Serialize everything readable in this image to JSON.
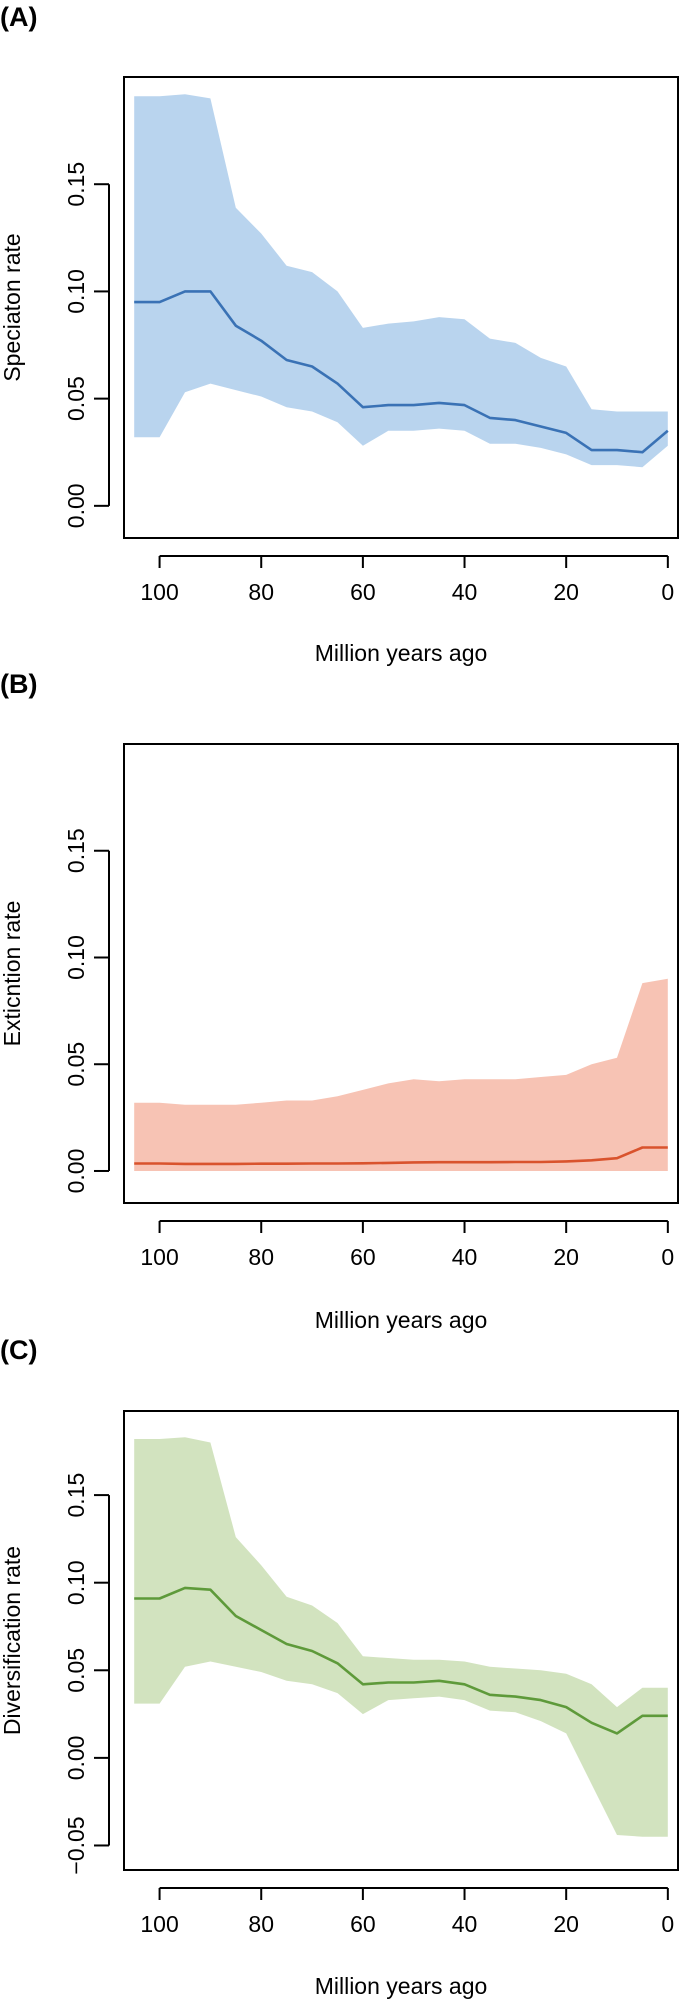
{
  "chart_data": [
    {
      "type": "line",
      "panel_label": "(A)",
      "xlabel": "Million years ago",
      "ylabel": "Speciaton rate",
      "xlim": [
        107,
        -2
      ],
      "ylim": [
        -0.015,
        0.2
      ],
      "xticks": [
        100,
        80,
        60,
        40,
        20,
        0
      ],
      "yticks": [
        0.0,
        0.05,
        0.1,
        0.15
      ],
      "ytick_labels": [
        "0.00",
        "0.05",
        "0.10",
        "0.15"
      ],
      "band_color": "#b9d4ee",
      "line_color": "#3a72b5",
      "x": [
        105,
        100,
        95,
        90,
        85,
        80,
        75,
        70,
        65,
        60,
        55,
        50,
        45,
        40,
        35,
        30,
        25,
        20,
        15,
        10,
        5,
        0
      ],
      "mean": [
        0.095,
        0.095,
        0.1,
        0.1,
        0.084,
        0.077,
        0.068,
        0.065,
        0.057,
        0.046,
        0.047,
        0.047,
        0.048,
        0.047,
        0.041,
        0.04,
        0.037,
        0.034,
        0.026,
        0.026,
        0.025,
        0.035
      ],
      "lower": [
        0.032,
        0.032,
        0.053,
        0.057,
        0.054,
        0.051,
        0.046,
        0.044,
        0.039,
        0.028,
        0.035,
        0.035,
        0.036,
        0.035,
        0.029,
        0.029,
        0.027,
        0.024,
        0.019,
        0.019,
        0.018,
        0.028
      ],
      "upper": [
        0.191,
        0.191,
        0.192,
        0.19,
        0.139,
        0.127,
        0.112,
        0.109,
        0.1,
        0.083,
        0.085,
        0.086,
        0.088,
        0.087,
        0.078,
        0.076,
        0.069,
        0.065,
        0.045,
        0.044,
        0.044,
        0.044
      ]
    },
    {
      "type": "line",
      "panel_label": "(B)",
      "xlabel": "Million years ago",
      "ylabel": "Exticntion rate",
      "xlim": [
        107,
        -2
      ],
      "ylim": [
        -0.015,
        0.2
      ],
      "xticks": [
        100,
        80,
        60,
        40,
        20,
        0
      ],
      "yticks": [
        0.0,
        0.05,
        0.1,
        0.15
      ],
      "ytick_labels": [
        "0.00",
        "0.05",
        "0.10",
        "0.15"
      ],
      "band_color": "#f7c3b4",
      "line_color": "#d9532d",
      "x": [
        105,
        100,
        95,
        90,
        85,
        80,
        75,
        70,
        65,
        60,
        55,
        50,
        45,
        40,
        35,
        30,
        25,
        20,
        15,
        10,
        5,
        0
      ],
      "mean": [
        0.0035,
        0.0035,
        0.0033,
        0.0033,
        0.0033,
        0.0034,
        0.0034,
        0.0035,
        0.0035,
        0.0036,
        0.0038,
        0.004,
        0.0041,
        0.0041,
        0.0041,
        0.0042,
        0.0042,
        0.0045,
        0.005,
        0.006,
        0.011,
        0.011
      ],
      "lower": [
        0.0,
        0.0,
        0.0,
        0.0,
        0.0,
        0.0,
        0.0,
        0.0,
        0.0,
        0.0,
        0.0,
        0.0,
        0.0,
        0.0,
        0.0,
        0.0,
        0.0,
        0.0,
        0.0,
        0.0,
        0.0,
        0.0
      ],
      "upper": [
        0.032,
        0.032,
        0.031,
        0.031,
        0.031,
        0.032,
        0.033,
        0.033,
        0.035,
        0.038,
        0.041,
        0.043,
        0.042,
        0.043,
        0.043,
        0.043,
        0.044,
        0.045,
        0.05,
        0.053,
        0.088,
        0.09
      ]
    },
    {
      "type": "line",
      "panel_label": "(C)",
      "xlabel": "Million years ago",
      "ylabel": "Diversification rate",
      "xlim": [
        107,
        -2
      ],
      "ylim": [
        -0.064,
        0.198
      ],
      "xticks": [
        100,
        80,
        60,
        40,
        20,
        0
      ],
      "yticks": [
        -0.05,
        0.0,
        0.05,
        0.1,
        0.15
      ],
      "ytick_labels": [
        "−0.05",
        "0.00",
        "0.05",
        "0.10",
        "0.15"
      ],
      "band_color": "#d2e3bf",
      "line_color": "#5e9a3a",
      "x": [
        105,
        100,
        95,
        90,
        85,
        80,
        75,
        70,
        65,
        60,
        55,
        50,
        45,
        40,
        35,
        30,
        25,
        20,
        15,
        10,
        5,
        0
      ],
      "mean": [
        0.091,
        0.091,
        0.097,
        0.096,
        0.081,
        0.073,
        0.065,
        0.061,
        0.054,
        0.042,
        0.043,
        0.043,
        0.044,
        0.042,
        0.036,
        0.035,
        0.033,
        0.029,
        0.02,
        0.014,
        0.024,
        0.024
      ],
      "lower": [
        0.031,
        0.031,
        0.052,
        0.055,
        0.052,
        0.049,
        0.044,
        0.042,
        0.037,
        0.025,
        0.033,
        0.034,
        0.035,
        0.033,
        0.027,
        0.026,
        0.021,
        0.014,
        -0.015,
        -0.044,
        -0.045,
        -0.045
      ],
      "upper": [
        0.182,
        0.182,
        0.183,
        0.18,
        0.126,
        0.11,
        0.092,
        0.087,
        0.077,
        0.058,
        0.057,
        0.056,
        0.056,
        0.055,
        0.052,
        0.051,
        0.05,
        0.048,
        0.042,
        0.029,
        0.04,
        0.04
      ]
    }
  ]
}
